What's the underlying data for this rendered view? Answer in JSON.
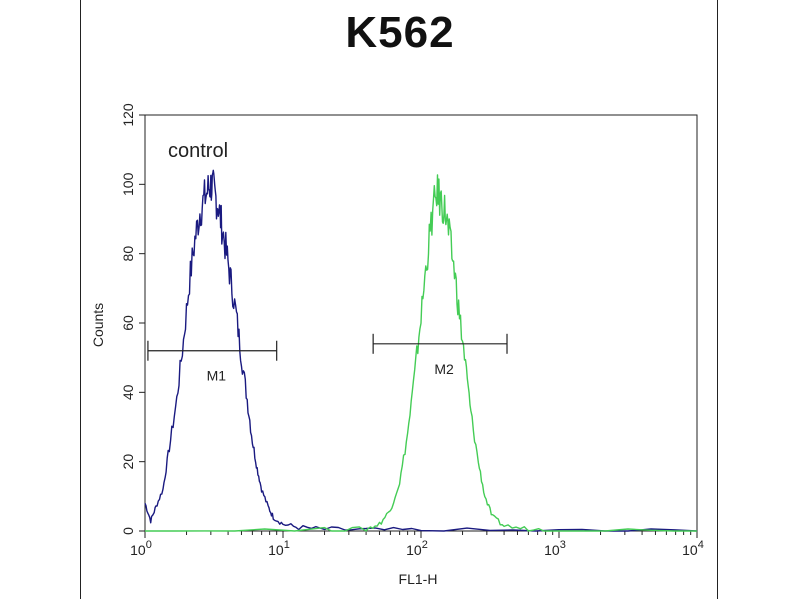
{
  "chart_data": {
    "type": "line",
    "title": "K562",
    "xlabel": "FL1-H",
    "ylabel": "Counts",
    "x_scale": "log",
    "xlim": [
      1,
      10000
    ],
    "ylim": [
      0,
      120
    ],
    "x_ticks": [
      {
        "value": 1,
        "base": "10",
        "exp": "0"
      },
      {
        "value": 10,
        "base": "10",
        "exp": "1"
      },
      {
        "value": 100,
        "base": "10",
        "exp": "2"
      },
      {
        "value": 1000,
        "base": "10",
        "exp": "3"
      },
      {
        "value": 10000,
        "base": "10",
        "exp": "4"
      }
    ],
    "y_ticks": [
      0,
      20,
      40,
      60,
      80,
      100,
      120
    ],
    "grid": false,
    "annotations": {
      "control_label": "control",
      "markers": [
        {
          "label": "M1",
          "x_start": 1.05,
          "x_end": 9.0,
          "y": 52
        },
        {
          "label": "M2",
          "x_start": 45,
          "x_end": 420,
          "y": 54
        }
      ]
    },
    "series": [
      {
        "color": "#1a1a80",
        "points": [
          [
            1.0,
            8
          ],
          [
            1.1,
            3
          ],
          [
            1.2,
            7
          ],
          [
            1.35,
            12
          ],
          [
            1.5,
            24
          ],
          [
            1.7,
            38
          ],
          [
            1.9,
            55
          ],
          [
            2.1,
            72
          ],
          [
            2.3,
            84
          ],
          [
            2.5,
            92
          ],
          [
            2.7,
            96
          ],
          [
            2.9,
            99
          ],
          [
            3.05,
            100
          ],
          [
            3.2,
            97
          ],
          [
            3.4,
            94
          ],
          [
            3.6,
            88
          ],
          [
            3.9,
            80
          ],
          [
            4.2,
            72
          ],
          [
            4.6,
            62
          ],
          [
            5.0,
            50
          ],
          [
            5.5,
            38
          ],
          [
            6.0,
            26
          ],
          [
            6.5,
            18
          ],
          [
            7.0,
            12
          ],
          [
            7.8,
            7
          ],
          [
            8.5,
            4
          ],
          [
            10,
            2
          ],
          [
            13,
            1
          ],
          [
            20,
            0.5
          ],
          [
            40,
            0.3
          ],
          [
            100,
            0.2
          ],
          [
            1000,
            0
          ],
          [
            10000,
            0
          ]
        ]
      },
      {
        "color": "#44cc55",
        "points": [
          [
            1,
            0
          ],
          [
            20,
            0.3
          ],
          [
            40,
            0.5
          ],
          [
            50,
            2
          ],
          [
            60,
            6
          ],
          [
            70,
            14
          ],
          [
            80,
            28
          ],
          [
            90,
            45
          ],
          [
            100,
            62
          ],
          [
            110,
            78
          ],
          [
            120,
            90
          ],
          [
            130,
            98
          ],
          [
            140,
            95
          ],
          [
            150,
            92
          ],
          [
            160,
            85
          ],
          [
            175,
            75
          ],
          [
            190,
            62
          ],
          [
            210,
            48
          ],
          [
            230,
            34
          ],
          [
            260,
            20
          ],
          [
            290,
            10
          ],
          [
            330,
            4
          ],
          [
            400,
            1.5
          ],
          [
            600,
            0.5
          ],
          [
            1000,
            0.3
          ],
          [
            10000,
            0
          ]
        ]
      }
    ]
  }
}
